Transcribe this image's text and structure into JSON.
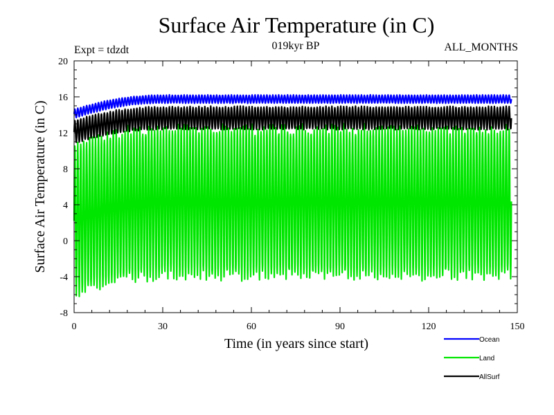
{
  "chart_data": {
    "type": "line",
    "title": "Surface Air Temperature (in C)",
    "subtitle_left": "Expt = tdzdt",
    "subtitle_center": "019kyr BP",
    "subtitle_right": "ALL_MONTHS",
    "xlabel": "Time (in years since start)",
    "ylabel": "Surface Air Temperature (in C)",
    "xlim": [
      0,
      150
    ],
    "ylim": [
      -8,
      20
    ],
    "xticks": [
      0,
      30,
      60,
      90,
      120,
      150
    ],
    "yticks": [
      -8,
      -4,
      0,
      4,
      8,
      12,
      16,
      20
    ],
    "x_minor_step": 6,
    "y_minor_step": 1,
    "grid": false,
    "legend_position": "bottom-right, outside plot",
    "samples_per_year": 12,
    "record_length_years": 148,
    "series": [
      {
        "name": "Ocean",
        "color": "#0000ff",
        "seasonal_min_start": 13.6,
        "seasonal_max_start": 14.6,
        "seasonal_min_end": 15.3,
        "seasonal_max_end": 16.2,
        "spinup_years": 30
      },
      {
        "name": "Land",
        "color": "#00e600",
        "seasonal_min_start": -6.2,
        "seasonal_max_start": 10.8,
        "seasonal_min_end": -4.0,
        "seasonal_max_end": 12.6,
        "spinup_years": 30
      },
      {
        "name": "AllSurf",
        "color": "#000000",
        "seasonal_min_start": 10.8,
        "seasonal_max_start": 13.4,
        "seasonal_min_end": 12.4,
        "seasonal_max_end": 14.9,
        "spinup_years": 30
      }
    ]
  }
}
